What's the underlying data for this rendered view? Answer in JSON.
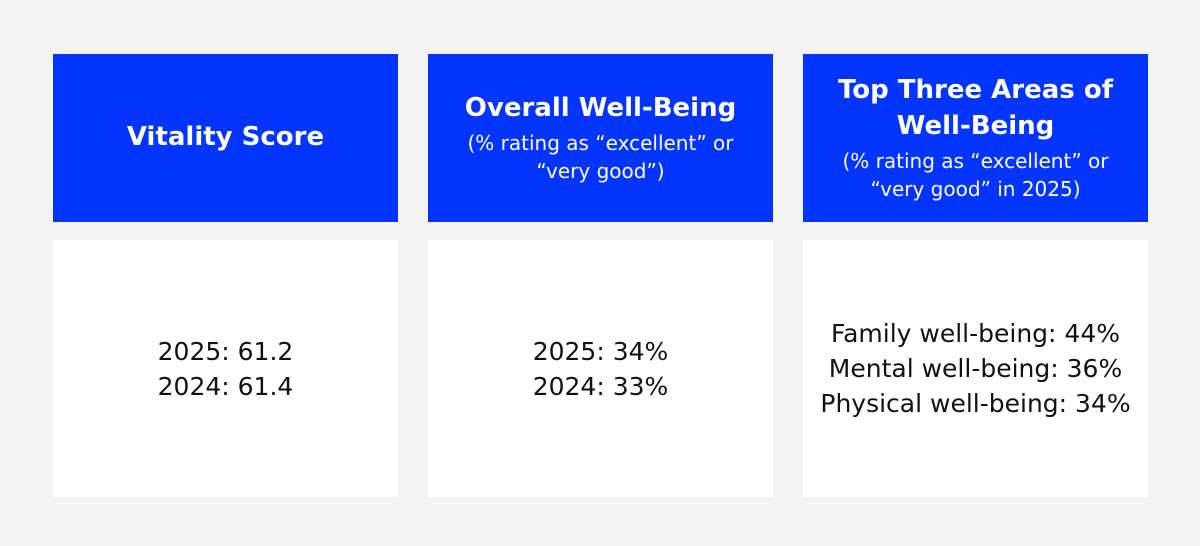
{
  "page": {
    "background_color": "#f4f4f4",
    "header_bg_color": "#0434ff",
    "header_text_color": "#ffffff",
    "body_bg_color": "#ffffff",
    "body_text_color": "#111111"
  },
  "cards": [
    {
      "title": "Vitality Score",
      "subtitle": "",
      "lines": [
        "2025: 61.2",
        "2024: 61.4"
      ]
    },
    {
      "title": "Overall Well-Being",
      "subtitle": "(% rating as “excellent” or “very good”)",
      "lines": [
        "2025: 34%",
        "2024: 33%"
      ]
    },
    {
      "title": "Top Three Areas of Well-Being",
      "subtitle": "(% rating as “excellent” or “very good” in 2025)",
      "lines": [
        "Family well-being: 44%",
        "Mental well-being: 36%",
        "Physical well-being: 34%"
      ]
    }
  ],
  "chart_data": [
    {
      "type": "table",
      "title": "Vitality Score",
      "categories": [
        "2025",
        "2024"
      ],
      "values": [
        61.2,
        61.4
      ]
    },
    {
      "type": "table",
      "title": "Overall Well-Being (% rating as “excellent” or “very good”)",
      "categories": [
        "2025",
        "2024"
      ],
      "values": [
        34,
        33
      ],
      "unit": "%"
    },
    {
      "type": "table",
      "title": "Top Three Areas of Well-Being (% rating as “excellent” or “very good” in 2025)",
      "categories": [
        "Family well-being",
        "Mental well-being",
        "Physical well-being"
      ],
      "values": [
        44,
        36,
        34
      ],
      "unit": "%"
    }
  ]
}
